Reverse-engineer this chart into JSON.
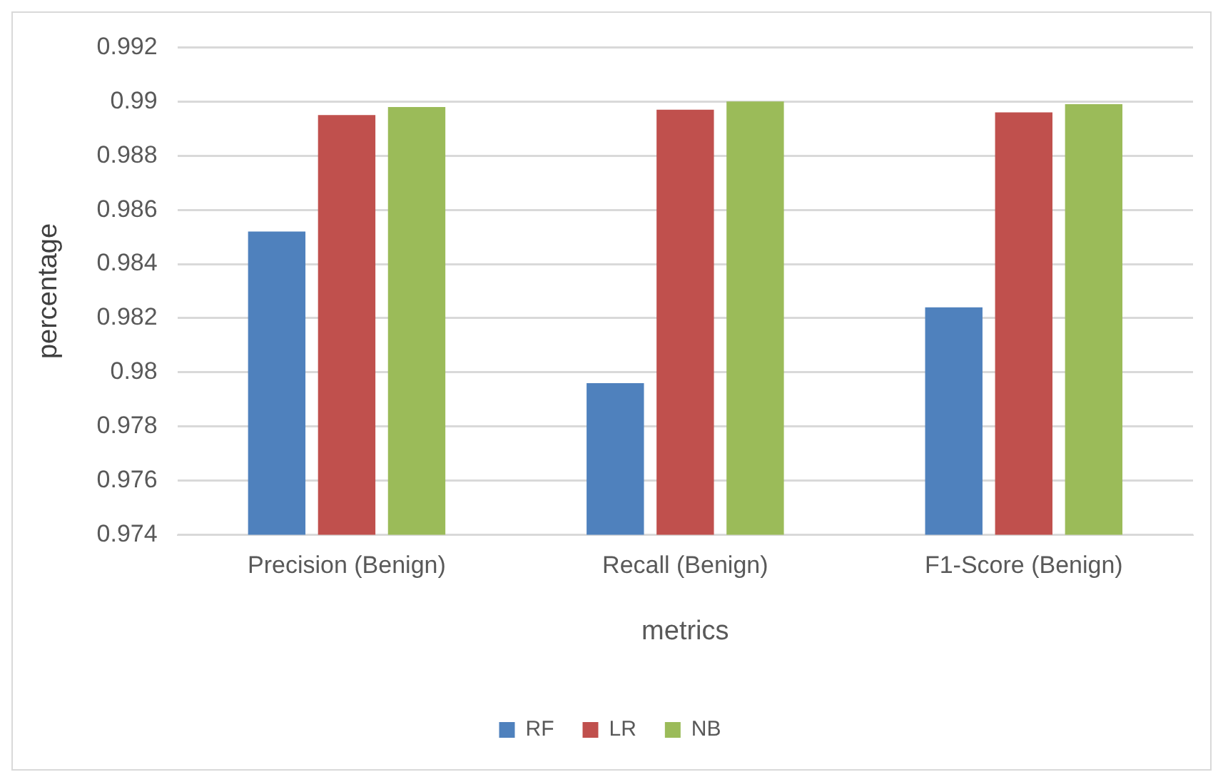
{
  "chart_data": {
    "type": "bar",
    "xlabel": "metrics",
    "ylabel": "percentage",
    "categories": [
      "Precision (Benign)",
      "Recall (Benign)",
      "F1-Score (Benign)"
    ],
    "series": [
      {
        "name": "RF",
        "color": "#4f81bd",
        "values": [
          0.9852,
          0.9796,
          0.9824
        ]
      },
      {
        "name": "LR",
        "color": "#c0504d",
        "values": [
          0.9895,
          0.9897,
          0.9896
        ]
      },
      {
        "name": "NB",
        "color": "#9bbb59",
        "values": [
          0.9898,
          0.99,
          0.9899
        ]
      }
    ],
    "ylim": [
      0.974,
      0.992
    ],
    "yticks": [
      0.974,
      0.976,
      0.978,
      0.98,
      0.982,
      0.984,
      0.986,
      0.988,
      0.99,
      0.992
    ],
    "grid": "y",
    "legend": "bottom"
  }
}
